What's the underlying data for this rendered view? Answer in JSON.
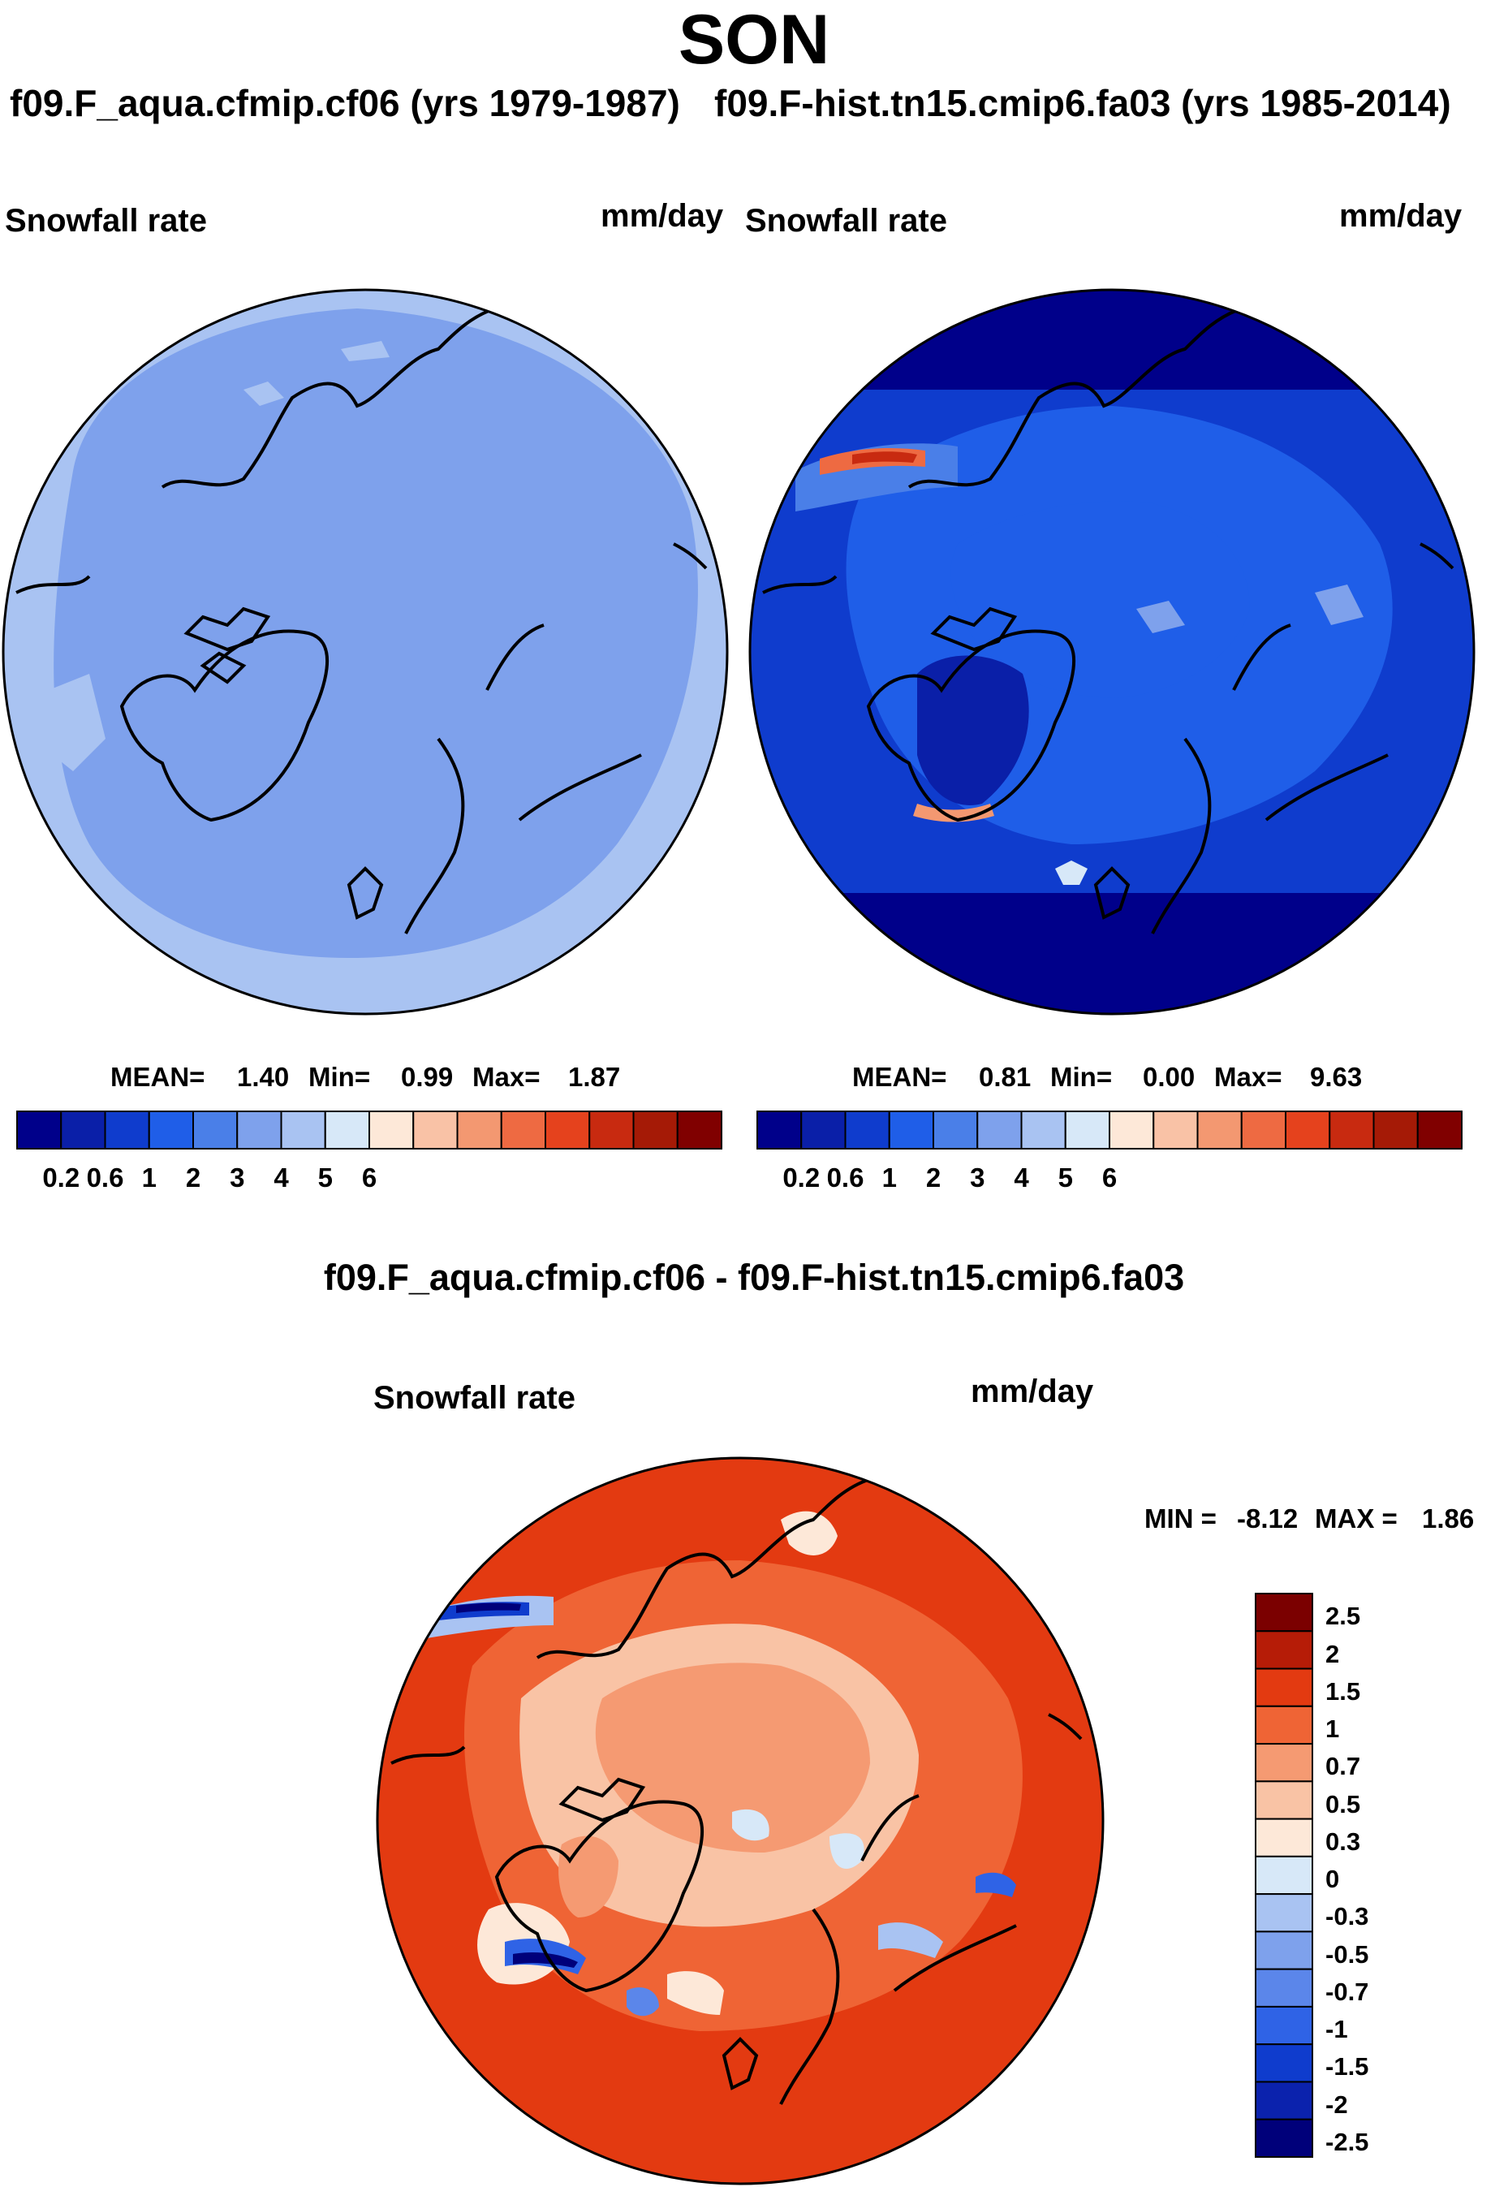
{
  "season": "SON",
  "panels": [
    {
      "caption": "f09.F_aqua.cfmip.cf06 (yrs 1979-1987)",
      "variable": "Snowfall rate",
      "units": "mm/day",
      "stats": {
        "mean_label": "MEAN=",
        "mean": "1.40",
        "min_label": "Min=",
        "min": "0.99",
        "max_label": "Max=",
        "max": "1.87"
      }
    },
    {
      "caption": "f09.F-hist.tn15.cmip6.fa03 (yrs 1985-2014)",
      "variable": "Snowfall rate",
      "units": "mm/day",
      "stats": {
        "mean_label": "MEAN=",
        "mean": "0.81",
        "min_label": "Min=",
        "min": "0.00",
        "max_label": "Max=",
        "max": "9.63"
      }
    }
  ],
  "colorbar": {
    "colors": [
      "#00008a",
      "#0a1fa8",
      "#0f3ccd",
      "#1f5ee8",
      "#4a7fe8",
      "#7ea1ec",
      "#a9c3f2",
      "#d7e8f8",
      "#fde8d8",
      "#f9c2a6",
      "#f39871",
      "#ee6a42",
      "#e5421d",
      "#c82a10",
      "#a51a06",
      "#800000"
    ],
    "tick_labels": [
      "0.2",
      "0.6",
      "1",
      "2",
      "3",
      "4",
      "5",
      "6"
    ]
  },
  "diff": {
    "title": "f09.F_aqua.cfmip.cf06 - f09.F-hist.tn15.cmip6.fa03",
    "variable": "Snowfall rate",
    "units": "mm/day",
    "min_label": "MIN =",
    "min": "-8.12",
    "max_label": "MAX =",
    "max": "1.86",
    "colors": [
      "#7b0000",
      "#b61c07",
      "#e33a11",
      "#ef6435",
      "#f59a72",
      "#f9c3a5",
      "#fde8d8",
      "#d7e8f8",
      "#a9c3f2",
      "#7ea1ec",
      "#5b86ea",
      "#2f63e6",
      "#0f3ccd",
      "#0b22ad",
      "#00007a"
    ],
    "tick_labels": [
      "2.5",
      "2",
      "1.5",
      "1",
      "0.7",
      "0.5",
      "0.3",
      "0",
      "-0.3",
      "-0.5",
      "-0.7",
      "-1",
      "-1.5",
      "-2",
      "-2.5"
    ]
  }
}
